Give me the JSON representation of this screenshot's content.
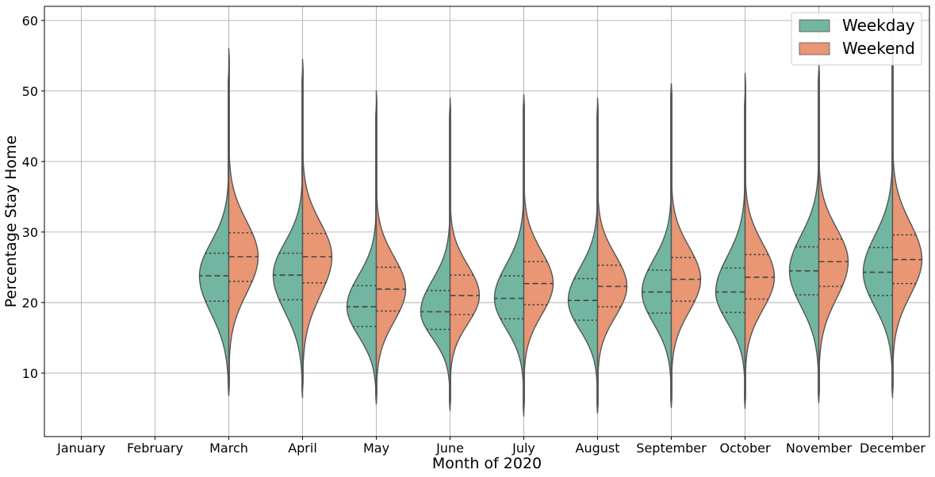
{
  "chart_data": {
    "type": "violin",
    "xlabel": "Month of 2020",
    "ylabel": "Percentage Stay Home",
    "ylim": [
      1,
      62
    ],
    "yticks": [
      10,
      20,
      30,
      40,
      50,
      60
    ],
    "grid": true,
    "legend_placement": "top-right",
    "categories": [
      "January",
      "February",
      "March",
      "April",
      "May",
      "June",
      "July",
      "August",
      "September",
      "October",
      "November",
      "December"
    ],
    "series": [
      {
        "name": "Weekday",
        "color": "#72b6a1",
        "values": [
          null,
          null,
          {
            "min": 6.8,
            "q1": 20.2,
            "median": 23.8,
            "q3": 27.0,
            "max": 53.0,
            "density_max": 0.115
          },
          {
            "min": 6.5,
            "q1": 20.4,
            "median": 23.9,
            "q3": 27.0,
            "max": 53.0,
            "density_max": 0.115
          },
          {
            "min": 5.6,
            "q1": 16.6,
            "median": 19.4,
            "q3": 22.4,
            "max": 48.0,
            "density_max": 0.12
          },
          {
            "min": 4.7,
            "q1": 16.2,
            "median": 18.7,
            "q3": 21.7,
            "max": 48.0,
            "density_max": 0.125
          },
          {
            "min": 3.9,
            "q1": 17.7,
            "median": 20.6,
            "q3": 23.8,
            "max": 49.0,
            "density_max": 0.12
          },
          {
            "min": 4.3,
            "q1": 17.5,
            "median": 20.3,
            "q3": 23.4,
            "max": 48.0,
            "density_max": 0.12
          },
          {
            "min": 5.1,
            "q1": 18.5,
            "median": 21.5,
            "q3": 24.6,
            "max": 51.0,
            "density_max": 0.115
          },
          {
            "min": 5.0,
            "q1": 18.6,
            "median": 21.5,
            "q3": 24.9,
            "max": 49.5,
            "density_max": 0.115
          },
          {
            "min": 5.8,
            "q1": 21.1,
            "median": 24.5,
            "q3": 27.9,
            "max": 53.0,
            "density_max": 0.11
          },
          {
            "min": 6.5,
            "q1": 21.0,
            "median": 24.3,
            "q3": 27.8,
            "max": 55.0,
            "density_max": 0.11
          }
        ]
      },
      {
        "name": "Weekend",
        "color": "#e99674",
        "values": [
          null,
          null,
          {
            "min": 7.0,
            "q1": 23.0,
            "median": 26.5,
            "q3": 29.9,
            "max": 56.0,
            "density_max": 0.105
          },
          {
            "min": 7.5,
            "q1": 22.8,
            "median": 26.5,
            "q3": 29.8,
            "max": 54.5,
            "density_max": 0.105
          },
          {
            "min": 5.8,
            "q1": 18.8,
            "median": 21.9,
            "q3": 25.0,
            "max": 50.0,
            "density_max": 0.105
          },
          {
            "min": 5.0,
            "q1": 18.3,
            "median": 21.0,
            "q3": 23.9,
            "max": 49.0,
            "density_max": 0.11
          },
          {
            "min": 4.6,
            "q1": 19.7,
            "median": 22.7,
            "q3": 25.8,
            "max": 49.5,
            "density_max": 0.11
          },
          {
            "min": 4.5,
            "q1": 19.4,
            "median": 22.3,
            "q3": 25.3,
            "max": 49.0,
            "density_max": 0.11
          },
          {
            "min": 5.3,
            "q1": 20.2,
            "median": 23.3,
            "q3": 26.4,
            "max": 51.0,
            "density_max": 0.105
          },
          {
            "min": 5.5,
            "q1": 20.5,
            "median": 23.6,
            "q3": 26.8,
            "max": 52.5,
            "density_max": 0.105
          },
          {
            "min": 6.0,
            "q1": 22.3,
            "median": 25.8,
            "q3": 29.0,
            "max": 54.0,
            "density_max": 0.1
          },
          {
            "min": 7.0,
            "q1": 22.7,
            "median": 26.1,
            "q3": 29.6,
            "max": 57.0,
            "density_max": 0.1
          }
        ]
      }
    ]
  }
}
